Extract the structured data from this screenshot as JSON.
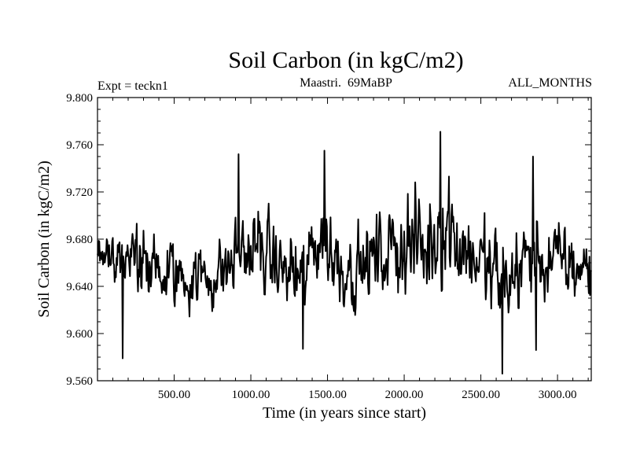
{
  "chart_data": {
    "type": "line",
    "title": "Soil Carbon (in kgC/m2)",
    "subtitle_left": "Expt = teckn1",
    "subtitle_center": "Maastri.  69MaBP",
    "subtitle_right": "ALL_MONTHS",
    "xlabel": "Time (in years since start)",
    "ylabel": "Soil Carbon (in kgC/m2)",
    "xlim": [
      0,
      3220
    ],
    "ylim": [
      9.56,
      9.8
    ],
    "xticks": [
      500,
      1000,
      1500,
      2000,
      2500,
      3000
    ],
    "xtick_labels": [
      "500.00",
      "1000.00",
      "1500.00",
      "2000.00",
      "2500.00",
      "3000.00"
    ],
    "yticks": [
      9.56,
      9.6,
      9.64,
      9.68,
      9.72,
      9.76,
      9.8
    ],
    "ytick_labels": [
      "9.560",
      "9.600",
      "9.640",
      "9.680",
      "9.720",
      "9.760",
      "9.800"
    ],
    "series": [
      {
        "name": "Soil Carbon",
        "color": "#000000",
        "sampling_step_years": 4,
        "envelope_keypoints": [
          {
            "x": 0,
            "mean": 9.672,
            "amp": 0.025
          },
          {
            "x": 100,
            "mean": 9.668,
            "amp": 0.03
          },
          {
            "x": 200,
            "mean": 9.662,
            "amp": 0.045
          },
          {
            "x": 350,
            "mean": 9.655,
            "amp": 0.04
          },
          {
            "x": 450,
            "mean": 9.65,
            "amp": 0.045
          },
          {
            "x": 600,
            "mean": 9.648,
            "amp": 0.035
          },
          {
            "x": 800,
            "mean": 9.65,
            "amp": 0.04
          },
          {
            "x": 950,
            "mean": 9.67,
            "amp": 0.05
          },
          {
            "x": 1050,
            "mean": 9.672,
            "amp": 0.05
          },
          {
            "x": 1200,
            "mean": 9.655,
            "amp": 0.04
          },
          {
            "x": 1350,
            "mean": 9.645,
            "amp": 0.05
          },
          {
            "x": 1450,
            "mean": 9.69,
            "amp": 0.06
          },
          {
            "x": 1550,
            "mean": 9.662,
            "amp": 0.05
          },
          {
            "x": 1700,
            "mean": 9.655,
            "amp": 0.045
          },
          {
            "x": 1900,
            "mean": 9.67,
            "amp": 0.05
          },
          {
            "x": 2000,
            "mean": 9.68,
            "amp": 0.06
          },
          {
            "x": 2150,
            "mean": 9.67,
            "amp": 0.06
          },
          {
            "x": 2250,
            "mean": 9.7,
            "amp": 0.07
          },
          {
            "x": 2350,
            "mean": 9.68,
            "amp": 0.06
          },
          {
            "x": 2500,
            "mean": 9.66,
            "amp": 0.05
          },
          {
            "x": 2650,
            "mean": 9.64,
            "amp": 0.06
          },
          {
            "x": 2800,
            "mean": 9.665,
            "amp": 0.05
          },
          {
            "x": 3000,
            "mean": 9.66,
            "amp": 0.045
          },
          {
            "x": 3220,
            "mean": 9.655,
            "amp": 0.04
          }
        ],
        "extremes": [
          {
            "x": 165,
            "y": 9.579
          },
          {
            "x": 2235,
            "y": 9.771
          },
          {
            "x": 2640,
            "y": 9.566
          },
          {
            "x": 1480,
            "y": 9.755
          },
          {
            "x": 920,
            "y": 9.752
          },
          {
            "x": 1340,
            "y": 9.587
          },
          {
            "x": 2840,
            "y": 9.75
          },
          {
            "x": 2860,
            "y": 9.586
          }
        ]
      }
    ]
  }
}
